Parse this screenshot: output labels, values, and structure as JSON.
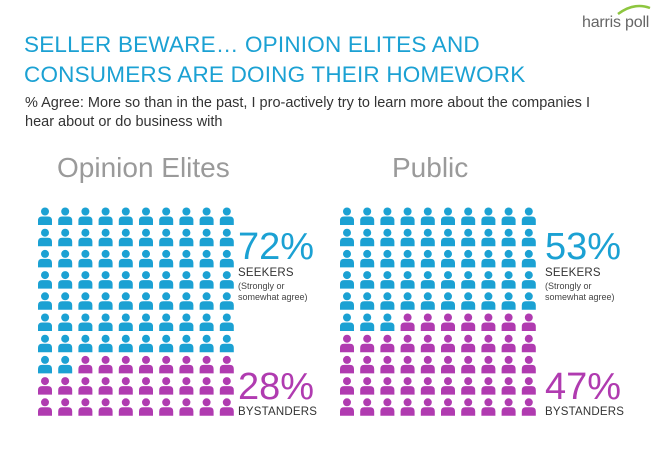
{
  "logo": {
    "text": "harris poll"
  },
  "title": "SELLER BEWARE… OPINION ELITES AND CONSUMERS ARE DOING THEIR HOMEWORK",
  "subtitle": "% Agree: More so than in the past, I pro-actively try to learn more about the companies I hear about or do business with",
  "colors": {
    "seekers": "#1ba1d3",
    "bystanders": "#b03bb0",
    "title": "#1ba1d3"
  },
  "chart_data": [
    {
      "type": "pictogram",
      "title": "Opinion Elites",
      "total_icons": 100,
      "series": [
        {
          "name": "SEEKERS",
          "value": 72,
          "value_label": "72%",
          "note": "(Strongly or somewhat agree)"
        },
        {
          "name": "BYSTANDERS",
          "value": 28,
          "value_label": "28%"
        }
      ]
    },
    {
      "type": "pictogram",
      "title": "Public",
      "total_icons": 100,
      "series": [
        {
          "name": "SEEKERS",
          "value": 53,
          "value_label": "53%",
          "note": "(Strongly or somewhat agree)"
        },
        {
          "name": "BYSTANDERS",
          "value": 47,
          "value_label": "47%"
        }
      ]
    }
  ]
}
